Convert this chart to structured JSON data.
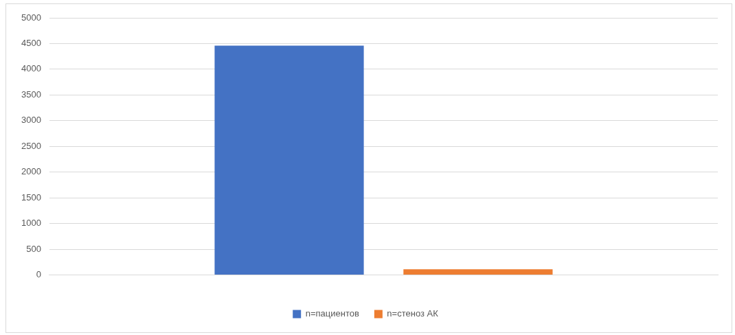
{
  "chart_data": {
    "type": "bar",
    "categories": [
      null
    ],
    "series": [
      {
        "name": "n=пациентов",
        "color": "#4472c4",
        "values": [
          4460
        ]
      },
      {
        "name": "n=стеноз АК",
        "color": "#ed7d31",
        "values": [
          110
        ]
      }
    ],
    "ylim": [
      0,
      5000
    ],
    "yticks": [
      0,
      500,
      1000,
      1500,
      2000,
      2500,
      3000,
      3500,
      4000,
      4500,
      5000
    ],
    "grid": "y",
    "legend": "bottom"
  }
}
